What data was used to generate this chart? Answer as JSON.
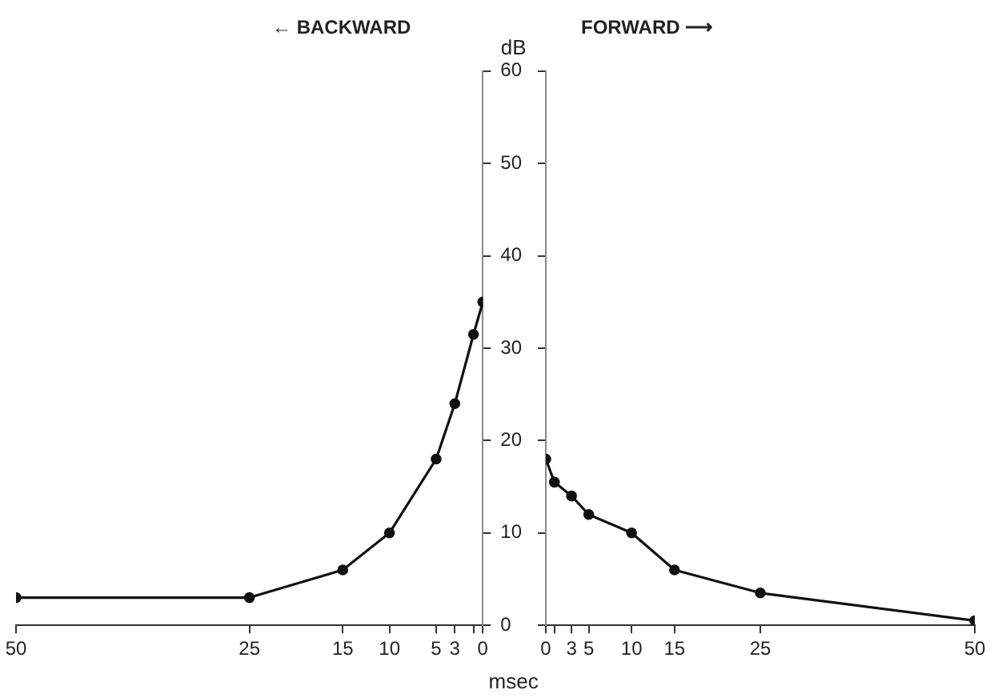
{
  "chart_data": [
    {
      "type": "line",
      "title": "← BACKWARD",
      "ylabel": "dB",
      "xlabel": "msec",
      "x": [
        0,
        1,
        3,
        5,
        10,
        15,
        25,
        50
      ],
      "series": [
        {
          "color": "#111111",
          "values": [
            35,
            31.5,
            24,
            18,
            10,
            6,
            3,
            3
          ]
        }
      ],
      "xlim": [
        50,
        0
      ],
      "xticks": [
        50,
        25,
        15,
        10,
        5,
        3,
        {
          "value": 1,
          "label": null
        },
        0
      ],
      "ylim": [
        0,
        60
      ],
      "yticks": [
        0,
        10,
        20,
        30,
        40,
        50,
        60
      ],
      "grid": false,
      "legend": false,
      "marker": "circle",
      "line_style": "solid"
    },
    {
      "type": "line",
      "title": "FORWARD ⟶",
      "x": [
        0,
        1,
        3,
        5,
        10,
        15,
        25,
        50
      ],
      "series": [
        {
          "color": "#111111",
          "values": [
            18,
            15.5,
            14,
            12,
            10,
            6,
            3.5,
            0.5
          ]
        }
      ],
      "xlim": [
        0,
        50
      ],
      "xticks": [
        0,
        {
          "value": 1,
          "label": null
        },
        3,
        5,
        10,
        15,
        25,
        50
      ],
      "ylim": [
        0,
        60
      ],
      "yticks": [
        0,
        10,
        20,
        30,
        40,
        50,
        60
      ],
      "tick_labels": "x",
      "grid": false,
      "legend": false,
      "marker": "circle",
      "line_style": "solid"
    }
  ]
}
